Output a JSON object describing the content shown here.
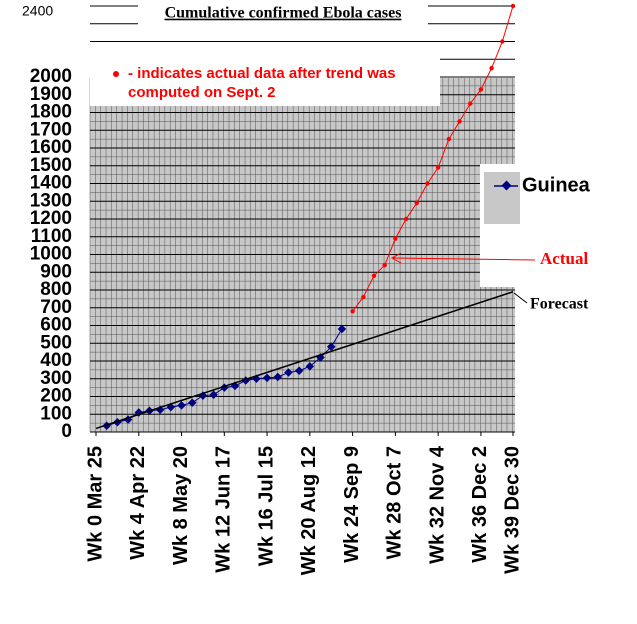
{
  "chart_data": {
    "type": "line",
    "title": "Cumulative confirmed Ebola cases",
    "note": {
      "lines": [
        "- indicates actual data after trend was",
        "computed on Sept. 2"
      ],
      "color": "#ff0000"
    },
    "xlim": [
      0,
      39
    ],
    "xticks": [
      {
        "value": 0,
        "label": "Wk 0 Mar 25"
      },
      {
        "value": 4,
        "label": "Wk 4  Apr 22"
      },
      {
        "value": 8,
        "label": "Wk 8 May 20"
      },
      {
        "value": 12,
        "label": "Wk 12 Jun 17"
      },
      {
        "value": 16,
        "label": "Wk 16 Jul 15"
      },
      {
        "value": 20,
        "label": "Wk  20 Aug 12"
      },
      {
        "value": 24,
        "label": "Wk 24 Sep 9"
      },
      {
        "value": 28,
        "label": "Wk 28 Oct 7"
      },
      {
        "value": 32,
        "label": "Wk 32 Nov 4"
      },
      {
        "value": 36,
        "label": "Wk 36 Dec 2"
      },
      {
        "value": 39,
        "label": "Wk 39 Dec 30"
      }
    ],
    "ylim": [
      0,
      2400
    ],
    "yticks": [
      0,
      100,
      200,
      300,
      400,
      500,
      600,
      700,
      800,
      900,
      1000,
      1100,
      1200,
      1300,
      1400,
      1500,
      1600,
      1700,
      1800,
      1900,
      2000,
      2400
    ],
    "grid": true,
    "legend": "right",
    "series": [
      {
        "name": "Guinea",
        "color": "#000080",
        "marker": "diamond",
        "in_legend": true,
        "x": [
          1,
          2,
          3,
          4,
          5,
          6,
          7,
          8,
          9,
          10,
          11,
          12,
          13,
          14,
          15,
          16,
          17,
          18,
          19,
          20,
          21,
          22,
          23
        ],
        "values": [
          35,
          55,
          70,
          110,
          120,
          125,
          140,
          150,
          165,
          205,
          210,
          250,
          260,
          290,
          300,
          305,
          310,
          335,
          345,
          370,
          420,
          480,
          580
        ]
      },
      {
        "name": "Actual",
        "color": "#ff0000",
        "marker": "circle",
        "in_legend": false,
        "x": [
          24,
          25,
          26,
          27,
          28,
          29,
          30,
          31,
          32,
          33,
          34,
          35,
          36,
          37,
          38,
          39
        ],
        "values": [
          680,
          760,
          880,
          940,
          1090,
          1200,
          1290,
          1400,
          1490,
          1650,
          1750,
          1850,
          1930,
          2050,
          2200,
          2400
        ]
      },
      {
        "name": "Forecast",
        "color": "#000000",
        "marker": "none",
        "in_legend": false,
        "x": [
          0,
          39
        ],
        "values": [
          20,
          790
        ]
      }
    ]
  }
}
